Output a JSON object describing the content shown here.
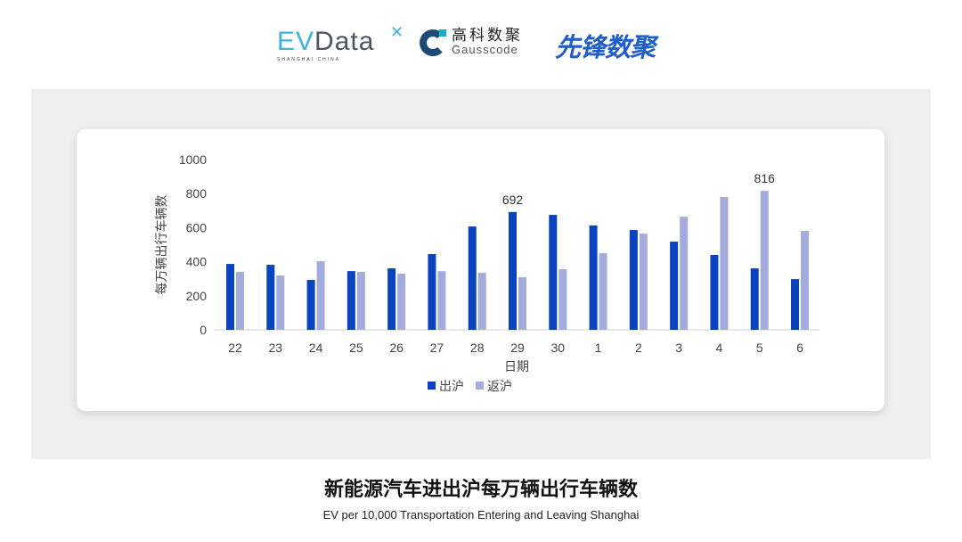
{
  "logos": {
    "evdata": {
      "ev": "EV",
      "data": "Data",
      "tagline": "SHANGHAI CHINA"
    },
    "gausscode": {
      "cn": "高科数聚",
      "en": "Gausscode"
    },
    "xianfeng": "先锋数聚"
  },
  "title": "新能源汽车进出沪每万辆出行车辆数",
  "subtitle": "EV per 10,000 Transportation Entering and Leaving Shanghai",
  "chart_data": {
    "type": "bar",
    "xlabel": "日期",
    "ylabel": "每万辆出行车辆数",
    "ylim": [
      0,
      1000
    ],
    "yticks": [
      0,
      200,
      400,
      600,
      800,
      1000
    ],
    "grid": false,
    "legend_position": "bottom",
    "categories": [
      "22",
      "23",
      "24",
      "25",
      "26",
      "27",
      "28",
      "29",
      "30",
      "1",
      "2",
      "3",
      "4",
      "5",
      "6"
    ],
    "series": [
      {
        "name": "出沪",
        "color": "#0a43c0",
        "values": [
          387,
          382,
          293,
          345,
          361,
          445,
          607,
          692,
          675,
          613,
          586,
          518,
          440,
          361,
          298
        ]
      },
      {
        "name": "返沪",
        "color": "#a3acdc",
        "values": [
          340,
          319,
          403,
          340,
          330,
          345,
          335,
          309,
          356,
          450,
          565,
          665,
          780,
          816,
          581
        ]
      }
    ],
    "data_labels": [
      {
        "series": 0,
        "category": "29",
        "text": "692"
      },
      {
        "series": 1,
        "category": "5",
        "text": "816"
      }
    ]
  }
}
